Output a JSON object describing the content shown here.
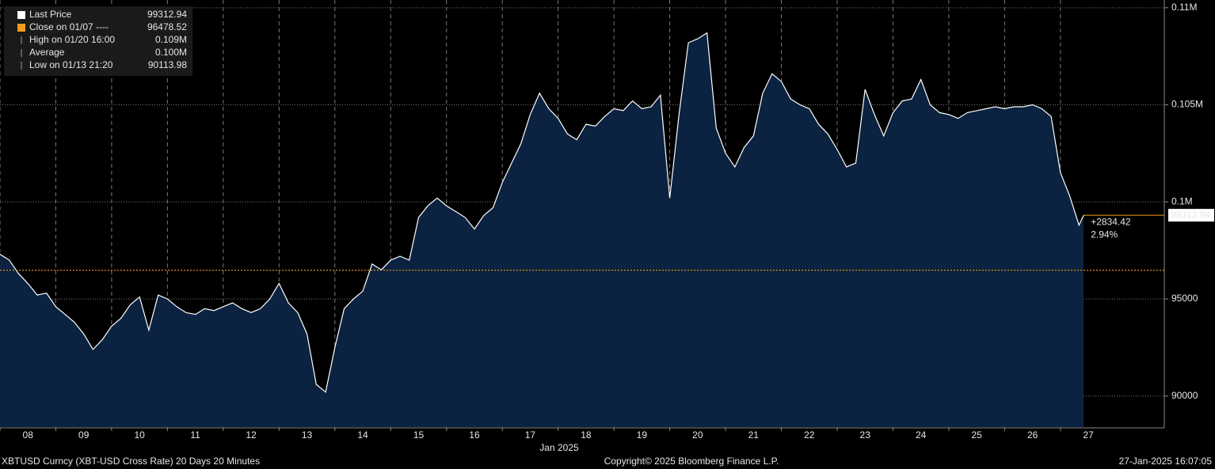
{
  "chart_data": {
    "type": "area",
    "title": "XBTUSD Curncy (XBT-USD Cross Rate) 20 Days 20 Minutes",
    "x_label": "Jan 2025",
    "copyright": "Copyright© 2025 Bloomberg Finance L.P.",
    "timestamp": "27-Jan-2025 16:07:05",
    "legend": [
      {
        "label": "Last Price",
        "value": 99312.94,
        "color": "#ffffff"
      },
      {
        "label": "Close on 01/07 ----",
        "value": 96478.52,
        "color": "#f39c1f"
      },
      {
        "label": "High on 01/20 16:00",
        "value": {
          "value": 108700,
          "label": "0.109M"
        }
      },
      {
        "label": "Average",
        "value": {
          "value": 100200,
          "label": "0.100M"
        }
      },
      {
        "label": "Low on 01/13 21:20",
        "value": 90113.98
      }
    ],
    "close": 96478.52,
    "close_color": "#f39c1f",
    "last_price": 99312.94,
    "change": {
      "value": 2834.42,
      "label": "+2834.42"
    },
    "change_pct": {
      "value": 2.94,
      "label": "2.94%"
    },
    "x": [
      "2025-01-08T00:00",
      "2025-01-08T04:00",
      "2025-01-08T08:00",
      "2025-01-08T12:00",
      "2025-01-08T16:00",
      "2025-01-08T20:00",
      "2025-01-09T00:00",
      "2025-01-09T04:00",
      "2025-01-09T08:00",
      "2025-01-09T12:00",
      "2025-01-09T16:00",
      "2025-01-09T20:00",
      "2025-01-10T00:00",
      "2025-01-10T04:00",
      "2025-01-10T08:00",
      "2025-01-10T12:00",
      "2025-01-10T16:00",
      "2025-01-10T20:00",
      "2025-01-11T00:00",
      "2025-01-11T04:00",
      "2025-01-11T08:00",
      "2025-01-11T12:00",
      "2025-01-11T16:00",
      "2025-01-11T20:00",
      "2025-01-12T00:00",
      "2025-01-12T04:00",
      "2025-01-12T08:00",
      "2025-01-12T12:00",
      "2025-01-12T16:00",
      "2025-01-12T20:00",
      "2025-01-13T00:00",
      "2025-01-13T04:00",
      "2025-01-13T08:00",
      "2025-01-13T12:00",
      "2025-01-13T16:00",
      "2025-01-13T20:00",
      "2025-01-14T00:00",
      "2025-01-14T04:00",
      "2025-01-14T08:00",
      "2025-01-14T12:00",
      "2025-01-14T16:00",
      "2025-01-14T20:00",
      "2025-01-15T00:00",
      "2025-01-15T04:00",
      "2025-01-15T08:00",
      "2025-01-15T12:00",
      "2025-01-15T16:00",
      "2025-01-15T20:00",
      "2025-01-16T00:00",
      "2025-01-16T04:00",
      "2025-01-16T08:00",
      "2025-01-16T12:00",
      "2025-01-16T16:00",
      "2025-01-16T20:00",
      "2025-01-17T00:00",
      "2025-01-17T04:00",
      "2025-01-17T08:00",
      "2025-01-17T12:00",
      "2025-01-17T16:00",
      "2025-01-17T20:00",
      "2025-01-18T00:00",
      "2025-01-18T04:00",
      "2025-01-18T08:00",
      "2025-01-18T12:00",
      "2025-01-18T16:00",
      "2025-01-18T20:00",
      "2025-01-19T00:00",
      "2025-01-19T04:00",
      "2025-01-19T08:00",
      "2025-01-19T12:00",
      "2025-01-19T16:00",
      "2025-01-19T20:00",
      "2025-01-20T00:00",
      "2025-01-20T04:00",
      "2025-01-20T08:00",
      "2025-01-20T12:00",
      "2025-01-20T16:00",
      "2025-01-20T20:00",
      "2025-01-21T00:00",
      "2025-01-21T04:00",
      "2025-01-21T08:00",
      "2025-01-21T12:00",
      "2025-01-21T16:00",
      "2025-01-21T20:00",
      "2025-01-22T00:00",
      "2025-01-22T04:00",
      "2025-01-22T08:00",
      "2025-01-22T12:00",
      "2025-01-22T16:00",
      "2025-01-22T20:00",
      "2025-01-23T00:00",
      "2025-01-23T04:00",
      "2025-01-23T08:00",
      "2025-01-23T12:00",
      "2025-01-23T16:00",
      "2025-01-23T20:00",
      "2025-01-24T00:00",
      "2025-01-24T04:00",
      "2025-01-24T08:00",
      "2025-01-24T12:00",
      "2025-01-24T16:00",
      "2025-01-24T20:00",
      "2025-01-25T00:00",
      "2025-01-25T04:00",
      "2025-01-25T08:00",
      "2025-01-25T12:00",
      "2025-01-25T16:00",
      "2025-01-25T20:00",
      "2025-01-26T00:00",
      "2025-01-26T04:00",
      "2025-01-26T08:00",
      "2025-01-26T12:00",
      "2025-01-26T16:00",
      "2025-01-26T20:00",
      "2025-01-27T00:00",
      "2025-01-27T04:00",
      "2025-01-27T08:00",
      "2025-01-27T10:00"
    ],
    "series": [
      {
        "name": "Last Price",
        "color": "#ffffff",
        "fill": "#0b2240",
        "values": [
          97300,
          97000,
          96300,
          95800,
          95200,
          95300,
          94600,
          94200,
          93800,
          93200,
          92400,
          92900,
          93600,
          94000,
          94700,
          95100,
          93400,
          95200,
          95000,
          94600,
          94300,
          94200,
          94500,
          94400,
          94600,
          94800,
          94500,
          94300,
          94500,
          95000,
          95800,
          94800,
          94300,
          93200,
          90600,
          90200,
          92500,
          94500,
          95000,
          95400,
          96800,
          96500,
          97000,
          97200,
          97000,
          99200,
          99800,
          100200,
          99800,
          99500,
          99200,
          98600,
          99300,
          99700,
          101000,
          102000,
          103000,
          104500,
          105600,
          104800,
          104300,
          103500,
          103200,
          104000,
          103900,
          104400,
          104800,
          104700,
          105200,
          104800,
          104900,
          105500,
          100200,
          104500,
          108200,
          108400,
          108700,
          103800,
          102500,
          101800,
          102800,
          103400,
          105600,
          106600,
          106200,
          105300,
          105000,
          104800,
          104000,
          103500,
          102700,
          101800,
          102000,
          105800,
          104500,
          103400,
          104600,
          105200,
          105300,
          106300,
          105000,
          104600,
          104500,
          104300,
          104600,
          104700,
          104800,
          104900,
          104800,
          104900,
          104900,
          105000,
          104800,
          104400,
          101500,
          100300,
          98800,
          99312.94
        ]
      }
    ],
    "xlim": [
      "2025-01-08T00:00",
      "2025-01-28T20:40"
    ],
    "xticks": [
      {
        "value": "2025-01-08T12:00",
        "label": "08"
      },
      {
        "value": "2025-01-09T12:00",
        "label": "09"
      },
      {
        "value": "2025-01-10T12:00",
        "label": "10"
      },
      {
        "value": "2025-01-11T12:00",
        "label": "11"
      },
      {
        "value": "2025-01-12T12:00",
        "label": "12"
      },
      {
        "value": "2025-01-13T12:00",
        "label": "13"
      },
      {
        "value": "2025-01-14T12:00",
        "label": "14"
      },
      {
        "value": "2025-01-15T12:00",
        "label": "15"
      },
      {
        "value": "2025-01-16T12:00",
        "label": "16"
      },
      {
        "value": "2025-01-17T12:00",
        "label": "17"
      },
      {
        "value": "2025-01-18T12:00",
        "label": "18"
      },
      {
        "value": "2025-01-19T12:00",
        "label": "19"
      },
      {
        "value": "2025-01-20T12:00",
        "label": "20"
      },
      {
        "value": "2025-01-21T12:00",
        "label": "21"
      },
      {
        "value": "2025-01-22T12:00",
        "label": "22"
      },
      {
        "value": "2025-01-23T12:00",
        "label": "23"
      },
      {
        "value": "2025-01-24T12:00",
        "label": "24"
      },
      {
        "value": "2025-01-25T12:00",
        "label": "25"
      },
      {
        "value": "2025-01-26T12:00",
        "label": "26"
      },
      {
        "value": "2025-01-27T12:00",
        "label": "27"
      }
    ],
    "ylim": [
      88400,
      110400
    ],
    "yticks": [
      90000,
      95000,
      {
        "value": 100000,
        "label": "0.1M"
      },
      {
        "value": 105000,
        "label": "0.105M"
      },
      {
        "value": 110000,
        "label": "0.11M"
      }
    ],
    "grid": true
  }
}
